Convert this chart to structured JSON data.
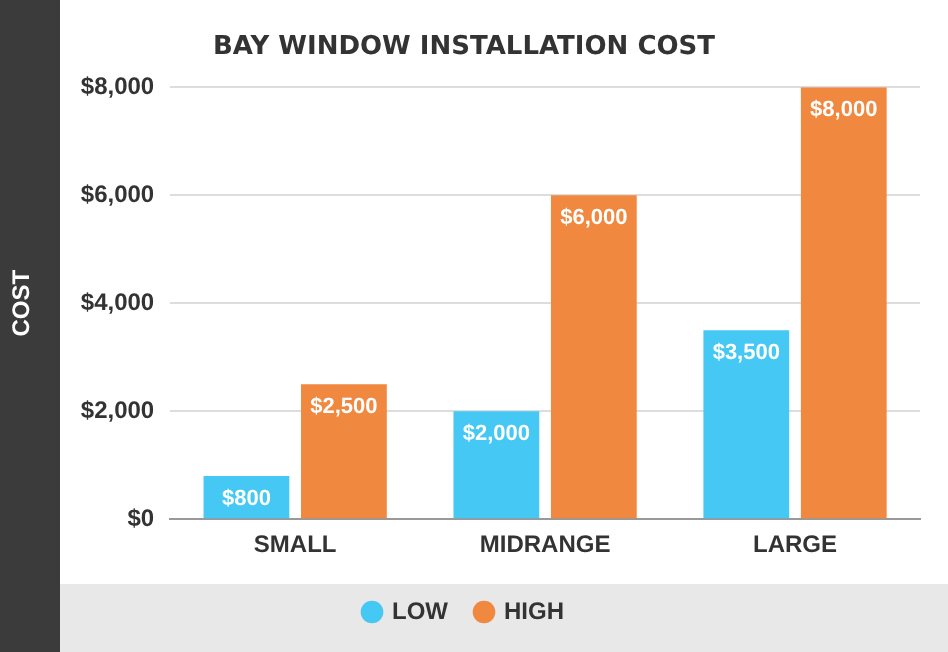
{
  "chart_data": {
    "type": "bar",
    "title": "BAY WINDOW INSTALLATION COST",
    "ylabel": "COST",
    "categories": [
      "SMALL",
      "MIDRANGE",
      "LARGE"
    ],
    "series": [
      {
        "name": "LOW",
        "color": "#45c8f3",
        "values": [
          800,
          2000,
          3500
        ],
        "value_labels": [
          "$800",
          "$2,000",
          "$3,500"
        ]
      },
      {
        "name": "HIGH",
        "color": "#f08840",
        "values": [
          2500,
          6000,
          8000
        ],
        "value_labels": [
          "$2,500",
          "$6,000",
          "$8,000"
        ]
      }
    ],
    "ylim": [
      0,
      8000
    ],
    "yticks": [
      {
        "value": 0,
        "label": "$0"
      },
      {
        "value": 2000,
        "label": "$2,000"
      },
      {
        "value": 4000,
        "label": "$4,000"
      },
      {
        "value": 6000,
        "label": "$6,000"
      },
      {
        "value": 8000,
        "label": "$8,000"
      }
    ],
    "grid": "y",
    "legend": "bottom"
  }
}
